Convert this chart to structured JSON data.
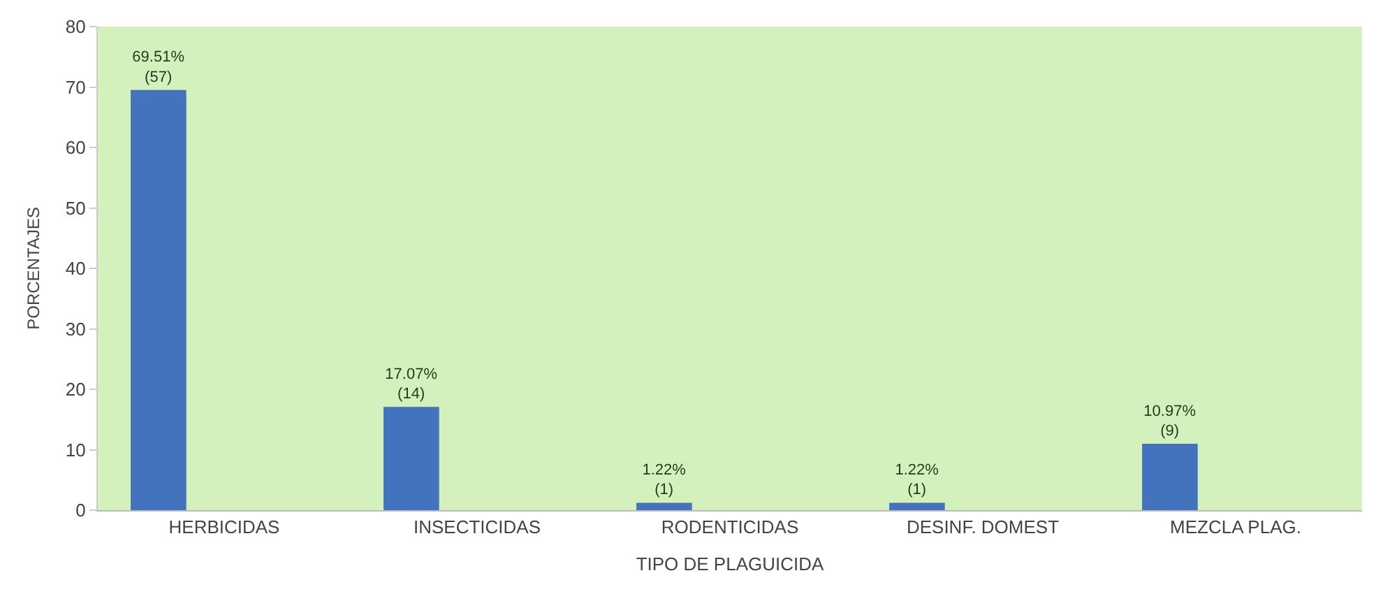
{
  "chart_data": {
    "type": "bar",
    "xlabel": "TIPO DE PLAGUICIDA",
    "ylabel": "PORCENTAJES",
    "categories": [
      "HERBICIDAS",
      "INSECTICIDAS",
      "RODENTICIDAS",
      "DESINF. DOMEST",
      "MEZCLA PLAG."
    ],
    "values": [
      69.51,
      17.07,
      1.22,
      1.22,
      10.97
    ],
    "color": "#4473bd",
    "value_labels": [
      "69.51%\n(57)",
      "17.07%\n(14)",
      "1.22%\n(1)",
      "1.22%\n(1)",
      "10.97%\n(9)"
    ],
    "ylim": [
      0,
      80
    ],
    "yticks": [
      0,
      10,
      20,
      30,
      40,
      50,
      60,
      70,
      80
    ],
    "grid": false,
    "legend": false
  }
}
